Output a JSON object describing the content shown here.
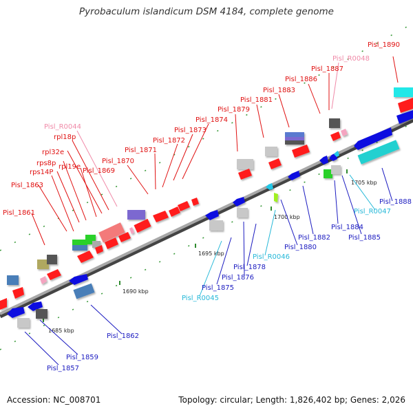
{
  "title": "Pyrobaculum islandicum DSM 4184, complete genome",
  "accession": "Accession: NC_008701",
  "summary": "Topology: circular; Length: 1,826,402 bp; Genes: 2,026",
  "colors": {
    "top_strand_label": "#e01010",
    "bottom_strand_label": "#1a1ac0",
    "rna_top_label": "#f08aa8",
    "rna_bottom_label": "#25b8d8",
    "backbone": "#8a8a8a"
  },
  "scale_labels": [
    "1685 kbp",
    "1690 kbp",
    "1695 kbp",
    "1700 kbp",
    "1705 kbp"
  ],
  "top_labels": [
    "Pisl_1890",
    "Pisl_R0048",
    "Pisl_1887",
    "Pisl_1886",
    "Pisl_1883",
    "Pisl_1881",
    "Pisl_1879",
    "Pisl_1874",
    "Pisl_1873",
    "Pisl_1872",
    "Pisl_1871",
    "Pisl_1870",
    "Pisl_R0044",
    "rpl18p",
    "rpl32e",
    "rpl19e",
    "Pisl_1869",
    "rps8p",
    "rps14P",
    "Pisl_1863",
    "Pisl_1861"
  ],
  "bottom_labels": [
    "Pisl_1888",
    "Pisl_R0047",
    "Pisl_1884",
    "Pisl_1885",
    "Pisl_1882",
    "Pisl_1880",
    "Pisl_R0046",
    "Pisl_1878",
    "Pisl_1876",
    "Pisl_1875",
    "Pisl_R0045",
    "Pisl_1862",
    "Pisl_1859",
    "Pisl_1857"
  ]
}
